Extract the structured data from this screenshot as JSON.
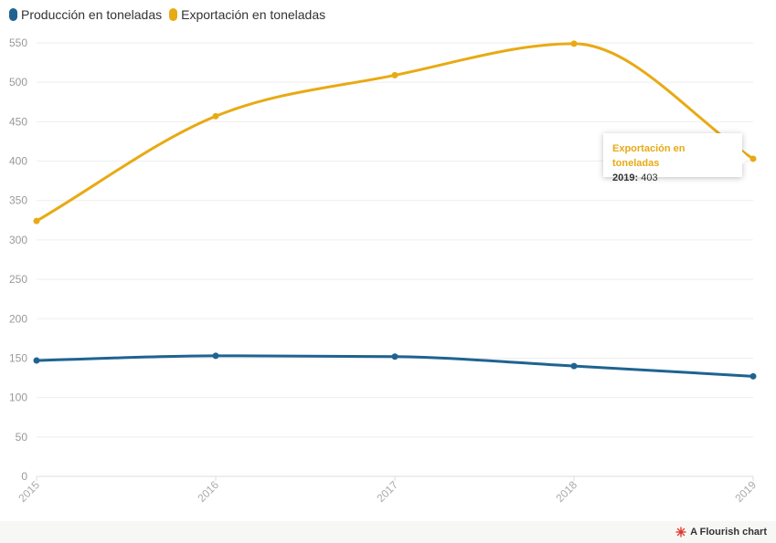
{
  "chart_data": {
    "type": "line",
    "x": [
      "2015",
      "2016",
      "2017",
      "2018",
      "2019"
    ],
    "series": [
      {
        "name": "Producción en toneladas",
        "color": "#1f6391",
        "values": [
          147,
          153,
          152,
          140,
          127
        ]
      },
      {
        "name": "Exportación en toneladas",
        "color": "#e8aa14",
        "values": [
          324,
          457,
          509,
          549,
          403
        ]
      }
    ],
    "y_ticks": [
      0,
      50,
      100,
      150,
      200,
      250,
      300,
      350,
      400,
      450,
      500,
      550
    ],
    "ylim": [
      0,
      550
    ],
    "grid": true,
    "legend_position": "top-left",
    "curve": "smooth"
  },
  "tooltip": {
    "title": "Exportación en toneladas",
    "label": "2019:",
    "value": "403",
    "series_index": 1,
    "point_index": 4
  },
  "credit": {
    "text": "A Flourish chart",
    "color": "#e03c31"
  }
}
